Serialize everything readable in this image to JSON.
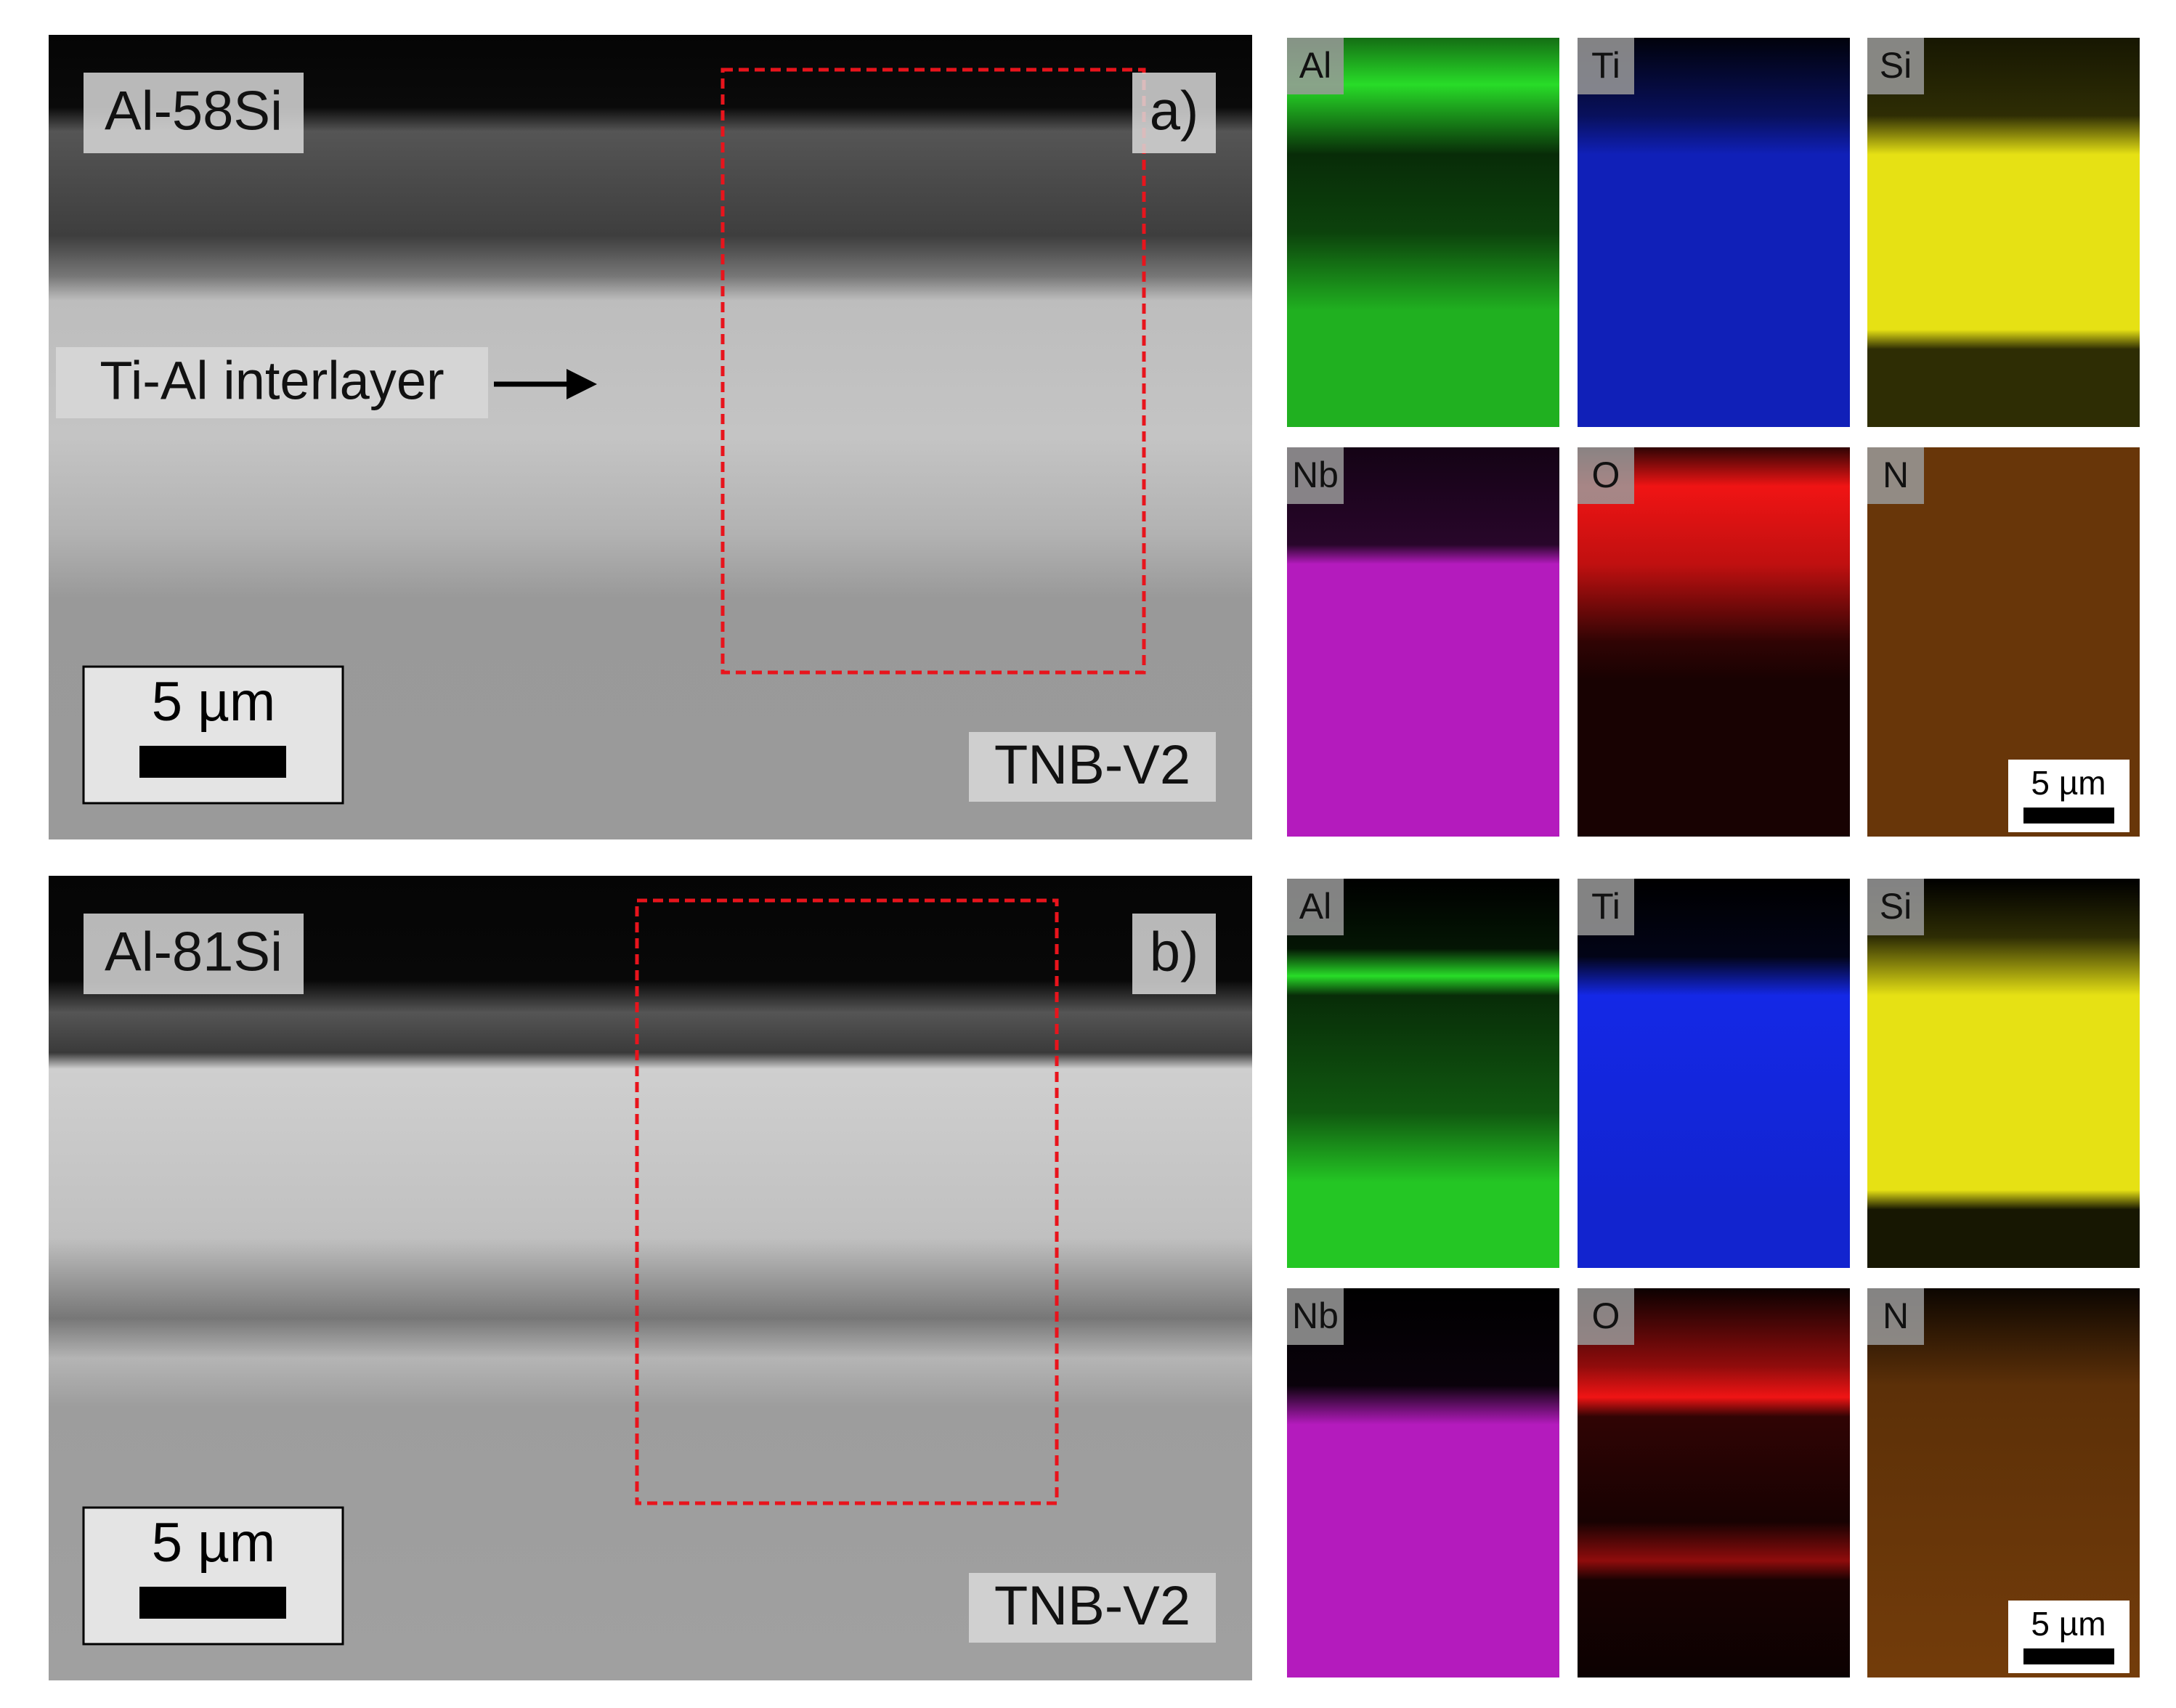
{
  "panels": [
    {
      "sample": "Al-58Si",
      "letter": "a)",
      "interlayer": "Ti-Al interlayer",
      "scale_bar": "5 µm",
      "substrate": "TNB-V2",
      "maps": [
        {
          "element": "Al"
        },
        {
          "element": "Ti"
        },
        {
          "element": "Si"
        },
        {
          "element": "Nb"
        },
        {
          "element": "O"
        },
        {
          "element": "N"
        }
      ],
      "map_scale_bar": "5 µm"
    },
    {
      "sample": "Al-81Si",
      "letter": "b)",
      "scale_bar": "5 µm",
      "substrate": "TNB-V2",
      "maps": [
        {
          "element": "Al"
        },
        {
          "element": "Ti"
        },
        {
          "element": "Si"
        },
        {
          "element": "Nb"
        },
        {
          "element": "O"
        },
        {
          "element": "N"
        }
      ],
      "map_scale_bar": "5 µm"
    }
  ]
}
